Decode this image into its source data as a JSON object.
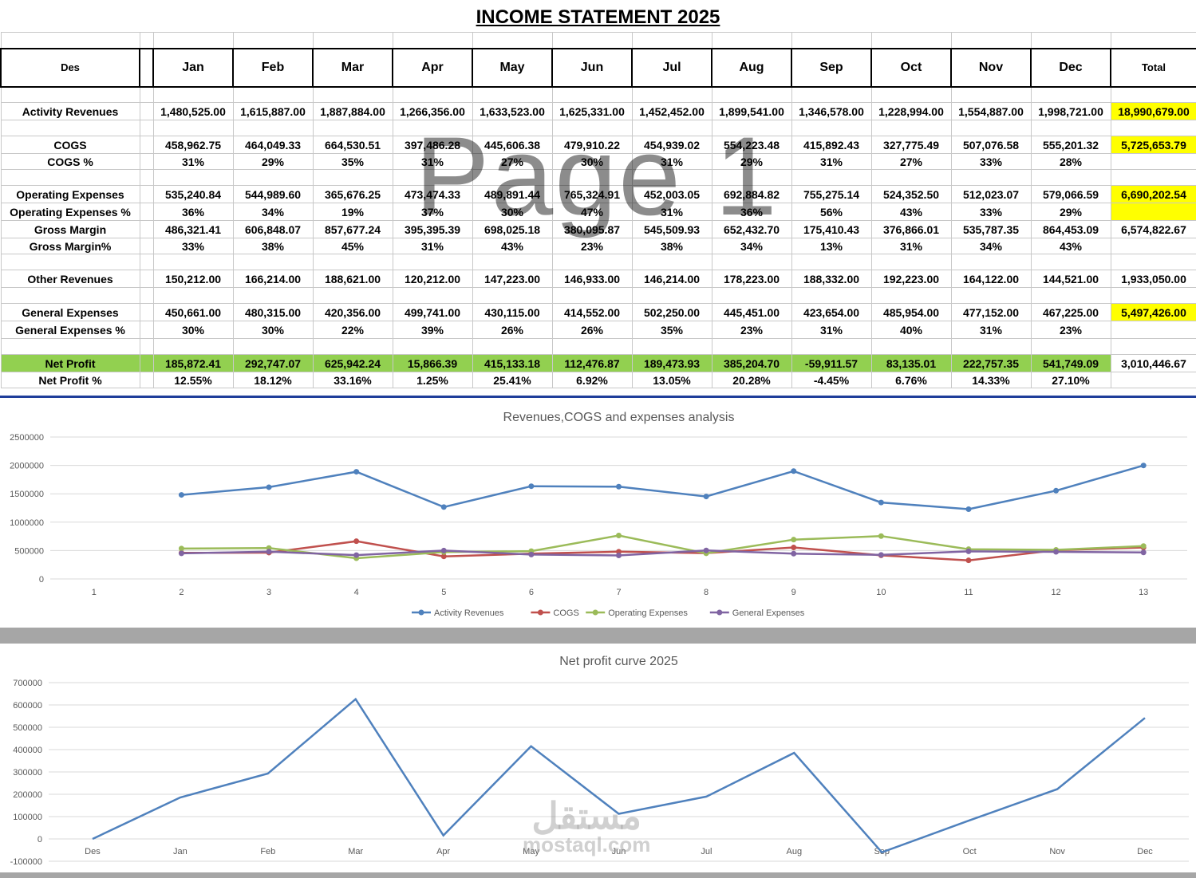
{
  "sheet": {
    "title": "INCOME STATEMENT 2025",
    "watermark": "Page 1",
    "header": {
      "label": "Des",
      "months": [
        "Jan",
        "Feb",
        "Mar",
        "Apr",
        "May",
        "Jun",
        "Jul",
        "Aug",
        "Sep",
        "Oct",
        "Nov",
        "Dec"
      ],
      "total": "Total"
    },
    "rows": [
      {
        "label": "Activity Revenues",
        "values": [
          "1,480,525.00",
          "1,615,887.00",
          "1,887,884.00",
          "1,266,356.00",
          "1,633,523.00",
          "1,625,331.00",
          "1,452,452.00",
          "1,899,541.00",
          "1,346,578.00",
          "1,228,994.00",
          "1,554,887.00",
          "1,998,721.00"
        ],
        "total": "18,990,679.00",
        "total_highlight": true
      },
      {
        "label": "COGS",
        "values": [
          "458,962.75",
          "464,049.33",
          "664,530.51",
          "397,486.28",
          "445,606.38",
          "479,910.22",
          "454,939.02",
          "554,223.48",
          "415,892.43",
          "327,775.49",
          "507,076.58",
          "555,201.32"
        ],
        "total": "5,725,653.79",
        "total_highlight": true
      },
      {
        "label": "COGS %",
        "values": [
          "31%",
          "29%",
          "35%",
          "31%",
          "27%",
          "30%",
          "31%",
          "29%",
          "31%",
          "27%",
          "33%",
          "28%"
        ],
        "total": ""
      },
      {
        "label": "Operating Expenses",
        "values": [
          "535,240.84",
          "544,989.60",
          "365,676.25",
          "473,474.33",
          "489,891.44",
          "765,324.91",
          "452,003.05",
          "692,884.82",
          "755,275.14",
          "524,352.50",
          "512,023.07",
          "579,066.59"
        ],
        "total": "6,690,202.54",
        "total_highlight": true
      },
      {
        "label": "Operating Expenses %",
        "values": [
          "36%",
          "34%",
          "19%",
          "37%",
          "30%",
          "47%",
          "31%",
          "36%",
          "56%",
          "43%",
          "33%",
          "29%"
        ],
        "total": "",
        "total_highlight": true
      },
      {
        "label": "Gross Margin",
        "values": [
          "486,321.41",
          "606,848.07",
          "857,677.24",
          "395,395.39",
          "698,025.18",
          "380,095.87",
          "545,509.93",
          "652,432.70",
          "175,410.43",
          "376,866.01",
          "535,787.35",
          "864,453.09"
        ],
        "total": "6,574,822.67"
      },
      {
        "label": "Gross Margin%",
        "values": [
          "33%",
          "38%",
          "45%",
          "31%",
          "43%",
          "23%",
          "38%",
          "34%",
          "13%",
          "31%",
          "34%",
          "43%"
        ],
        "total": ""
      },
      {
        "label": "Other Revenues",
        "values": [
          "150,212.00",
          "166,214.00",
          "188,621.00",
          "120,212.00",
          "147,223.00",
          "146,933.00",
          "146,214.00",
          "178,223.00",
          "188,332.00",
          "192,223.00",
          "164,122.00",
          "144,521.00"
        ],
        "total": "1,933,050.00"
      },
      {
        "label": "General Expenses",
        "values": [
          "450,661.00",
          "480,315.00",
          "420,356.00",
          "499,741.00",
          "430,115.00",
          "414,552.00",
          "502,250.00",
          "445,451.00",
          "423,654.00",
          "485,954.00",
          "477,152.00",
          "467,225.00"
        ],
        "total": "5,497,426.00",
        "total_highlight": true
      },
      {
        "label": "General Expenses %",
        "values": [
          "30%",
          "30%",
          "22%",
          "39%",
          "26%",
          "26%",
          "35%",
          "23%",
          "31%",
          "40%",
          "31%",
          "23%"
        ],
        "total": ""
      },
      {
        "label": "Net Profit",
        "values": [
          "185,872.41",
          "292,747.07",
          "625,942.24",
          "15,866.39",
          "415,133.18",
          "112,476.87",
          "189,473.93",
          "385,204.70",
          "-59,911.57",
          "83,135.01",
          "222,757.35",
          "541,749.09"
        ],
        "total": "3,010,446.67"
      },
      {
        "label": "Net Profit %",
        "values": [
          "12.55%",
          "18.12%",
          "33.16%",
          "1.25%",
          "25.41%",
          "6.92%",
          "13.05%",
          "20.28%",
          "-4.45%",
          "6.76%",
          "14.33%",
          "27.10%"
        ],
        "total": ""
      }
    ]
  },
  "chart_data": [
    {
      "type": "line",
      "title": "Revenues,COGS and expenses analysis",
      "categories": [
        "1",
        "2",
        "3",
        "4",
        "5",
        "6",
        "7",
        "8",
        "9",
        "10",
        "11",
        "12",
        "13"
      ],
      "y_ticks": [
        "0",
        "500000",
        "1000000",
        "1500000",
        "2000000",
        "2500000"
      ],
      "ylim": [
        0,
        2500000
      ],
      "grid": true,
      "legend": "bottom",
      "series": [
        {
          "name": "Activity Revenues",
          "color": "#4f81bd",
          "values": [
            null,
            1480525,
            1615887,
            1887884,
            1266356,
            1633523,
            1625331,
            1452452,
            1899541,
            1346578,
            1228994,
            1554887,
            1998721
          ]
        },
        {
          "name": "COGS",
          "color": "#c0504d",
          "values": [
            null,
            458962.75,
            464049.33,
            664530.51,
            397486.28,
            445606.38,
            479910.22,
            454939.02,
            554223.48,
            415892.43,
            327775.49,
            507076.58,
            555201.32
          ]
        },
        {
          "name": "Operating Expenses",
          "color": "#9bbb59",
          "values": [
            null,
            535240.84,
            544989.6,
            365676.25,
            473474.33,
            489891.44,
            765324.91,
            452003.05,
            692884.82,
            755275.14,
            524352.5,
            512023.07,
            579066.59
          ]
        },
        {
          "name": "General Expenses",
          "color": "#8064a2",
          "values": [
            null,
            450661,
            480315,
            420356,
            499741,
            430115,
            414552,
            502250,
            445451,
            423654,
            485954,
            477152,
            467225
          ]
        }
      ]
    },
    {
      "type": "line",
      "title": "Net profit curve 2025",
      "categories": [
        "Des",
        "Jan",
        "Feb",
        "Mar",
        "Apr",
        "May",
        "Jun",
        "Jul",
        "Aug",
        "Sep",
        "Oct",
        "Nov",
        "Dec"
      ],
      "y_ticks": [
        "-100000",
        "0",
        "100000",
        "200000",
        "300000",
        "400000",
        "500000",
        "600000",
        "700000"
      ],
      "ylim": [
        -100000,
        700000
      ],
      "grid": true,
      "legend": "none",
      "series": [
        {
          "color": "#4f81bd",
          "values": [
            0,
            185872.41,
            292747.07,
            625942.24,
            15866.39,
            415133.18,
            112476.87,
            189473.93,
            385204.7,
            -59911.57,
            83135.01,
            222757.35,
            541749.09
          ]
        }
      ]
    }
  ],
  "branding": {
    "arabic": "مستقل",
    "latin": "mostaql.com"
  }
}
